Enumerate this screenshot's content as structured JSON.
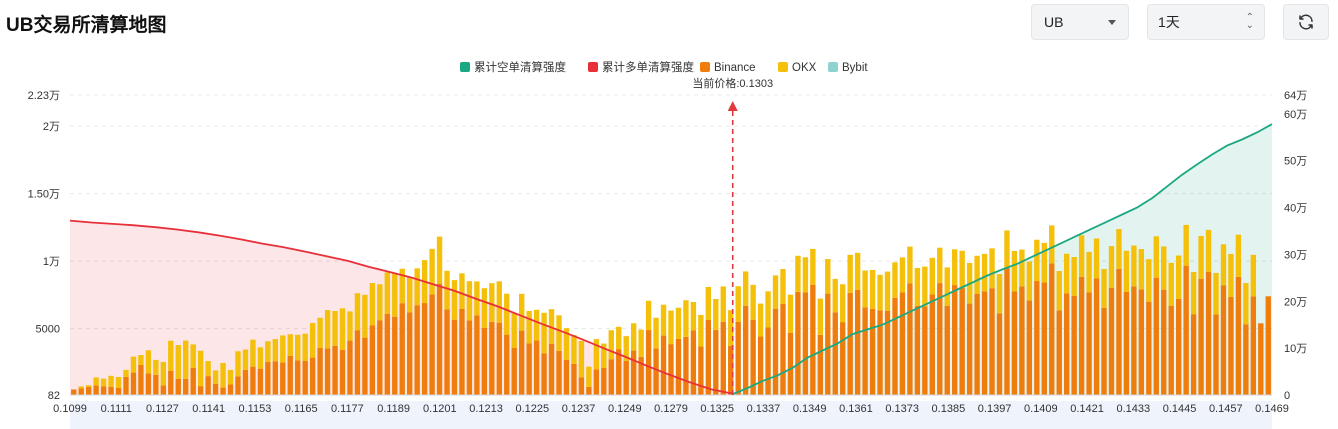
{
  "page": {
    "title": "UB交易所清算地图"
  },
  "controls": {
    "coin": "UB",
    "timeframe": "1天"
  },
  "colors": {
    "short_cum": "#1aa883",
    "long_cum": "#e8303a",
    "binance": "#ef7d0e",
    "okx": "#f4c00a",
    "bybit": "#8fd3d1",
    "current_price": "#e03a3a"
  },
  "chart_data": {
    "type": "bar",
    "title": "",
    "legend": {
      "position": "top-center",
      "items": [
        "累计空单清算强度",
        "累计多单清算强度",
        "Binance",
        "OKX",
        "Bybit"
      ]
    },
    "current_price_label": "当前价格:0.1303",
    "current_price": 0.1303,
    "x_tick_labels": [
      "0.1099",
      "0.1111",
      "0.1127",
      "0.1141",
      "0.1153",
      "0.1165",
      "0.1177",
      "0.1189",
      "0.1201",
      "0.1213",
      "0.1225",
      "0.1237",
      "0.1249",
      "0.1279",
      "0.1325",
      "0.1337",
      "0.1349",
      "0.1361",
      "0.1373",
      "0.1385",
      "0.1397",
      "0.1409",
      "0.1421",
      "0.1433",
      "0.1445",
      "0.1457",
      "0.1469"
    ],
    "y_left": {
      "range": [
        82,
        22300
      ],
      "tick_labels": [
        "82",
        "5000",
        "1万",
        "1.50万",
        "2万",
        "2.23万"
      ],
      "tick_values": [
        82,
        5000,
        10000,
        15000,
        20000,
        22300
      ]
    },
    "y_right": {
      "range": [
        0,
        640000
      ],
      "tick_labels": [
        "0",
        "10万",
        "20万",
        "30万",
        "40万",
        "50万",
        "60万",
        "64万"
      ],
      "tick_values": [
        0,
        100000,
        200000,
        300000,
        400000,
        500000,
        600000,
        640000
      ]
    },
    "bars_note": "stacked per price level: Binance, OKX, Bybit (left axis)",
    "price_levels_range": [
      0.1099,
      0.1469
    ],
    "bars": {
      "binance": [
        410,
        490,
        590,
        700,
        630,
        600,
        520,
        1340,
        1660,
        2220,
        1600,
        1500,
        700,
        1800,
        1200,
        1200,
        2000,
        660,
        1400,
        830,
        550,
        780,
        1380,
        1860,
        2100,
        1950,
        2440,
        2500,
        2400,
        2890,
        2560,
        2520,
        2770,
        3480,
        3440,
        3650,
        3350,
        4030,
        4800,
        4250,
        5170,
        5540,
        6000,
        5800,
        6800,
        6120,
        6650,
        6810,
        7460,
        8250,
        6340,
        5580,
        6370,
        5520,
        5900,
        4970,
        5420,
        5360,
        4470,
        3480,
        4770,
        3820,
        4040,
        3080,
        3780,
        3270,
        2600,
        2300,
        1300,
        600,
        1900,
        2000,
        2650,
        3400,
        2540,
        3290,
        2830,
        4810,
        3460,
        4400,
        3770,
        4150,
        4310,
        4800,
        3590,
        5560,
        4830,
        5420,
        3630,
        5430,
        6610,
        5580,
        4330,
        5000,
        6370,
        6740,
        4610,
        7640,
        7610,
        8170,
        4460,
        7510,
        6130,
        5400,
        7570,
        7780,
        6490,
        6380,
        6280,
        6240,
        7200,
        7600,
        8280,
        6600,
        6570,
        7440,
        8290,
        6600,
        8140,
        7950,
        6770,
        7480,
        7680,
        7910,
        6050,
        9400,
        7670,
        8050,
        7010,
        8440,
        8340,
        9750,
        6270,
        7530,
        7340,
        8740,
        7590,
        8630,
        6460,
        7930,
        9340,
        7630,
        8050,
        7810,
        6910,
        8690,
        7800,
        6610,
        7120,
        9580,
        5990,
        8610,
        9130,
        5960,
        8110,
        7260,
        8750,
        5240,
        7300,
        5310,
        7310
      ],
      "okx": [
        0,
        150,
        130,
        600,
        580,
        820,
        810,
        520,
        1180,
        740,
        1710,
        1100,
        1750,
        2220,
        2500,
        2830,
        1750,
        2620,
        1110,
        990,
        1820,
        1080,
        1860,
        1510,
        2000,
        1580,
        1540,
        1640,
        2010,
        1610,
        1900,
        2020,
        2560,
        2240,
        2850,
        2570,
        3070,
        2160,
        2740,
        3170,
        3120,
        2660,
        3080,
        3200,
        2550,
        2590,
        2730,
        3180,
        3360,
        3480,
        2860,
        2930,
        2640,
        2910,
        2510,
        2940,
        2860,
        3060,
        3030,
        2580,
        2720,
        2410,
        2270,
        3010,
        2580,
        2630,
        2350,
        2140,
        2700,
        1500,
        2240,
        1810,
        2150,
        1650,
        1820,
        2020,
        2010,
        2170,
        2260,
        2290,
        2480,
        2310,
        2710,
        2090,
        2340,
        2440,
        2280,
        2620,
        2650,
        2630,
        2540,
        2580,
        2440,
        2680,
        2490,
        2590,
        2820,
        2670,
        2590,
        2650,
        2680,
        2560,
        2470,
        2800,
        2810,
        2750,
        2730,
        2880,
        2620,
        2900,
        2630,
        2590,
        2710,
        2810,
        2940,
        2720,
        2620,
        2850,
        2650,
        2730,
        3010,
        2830,
        2770,
        2950,
        2910,
        2790,
        3000,
        2720,
        2880,
        3060,
        2930,
        2810,
        2910,
        2930,
        2880,
        3090,
        3010,
        2960,
        2870,
        3100,
        2950,
        3050,
        3020,
        3000,
        3150,
        3060,
        3200,
        3180,
        3210,
        3020,
        3120,
        3170,
        3100,
        3080,
        3050,
        3180,
        3120,
        3050,
        3080
      ],
      "bybit": [
        0,
        0,
        0,
        0,
        0,
        0,
        0,
        0,
        0,
        0,
        0,
        0,
        0,
        0,
        0,
        0,
        0,
        0,
        0,
        0,
        0,
        0,
        0,
        0,
        0,
        0,
        0,
        0,
        0,
        0,
        0,
        0,
        0,
        0,
        0,
        0,
        0,
        0,
        0,
        0,
        0,
        0,
        0,
        0,
        0,
        0,
        0,
        0,
        0,
        0,
        0,
        0,
        0,
        0,
        0,
        0,
        0,
        0,
        0,
        0,
        0,
        0,
        0,
        0,
        0,
        0,
        0,
        0,
        0,
        0,
        0,
        0,
        0,
        0,
        0,
        0,
        0,
        0,
        0,
        0,
        0,
        0,
        0,
        0,
        0,
        0,
        0,
        0,
        0,
        0,
        0,
        0,
        0,
        0,
        0,
        0,
        0,
        0,
        0,
        0,
        0,
        0,
        0,
        0,
        0,
        0,
        0,
        0,
        0,
        0,
        0,
        0,
        0,
        0,
        0,
        0,
        0,
        0,
        0,
        0,
        0,
        0,
        0,
        0,
        0,
        0,
        0,
        0,
        0,
        0,
        0,
        0,
        0,
        0,
        0,
        0,
        0,
        0,
        0,
        0,
        0,
        0,
        0,
        0,
        0,
        0,
        0,
        0,
        0,
        0,
        0,
        0,
        0,
        0,
        0,
        0,
        0,
        0,
        0,
        0,
        0,
        0,
        0,
        0,
        0,
        0
      ]
    },
    "long_cumulative": [
      372000,
      368000,
      365000,
      362000,
      358000,
      353000,
      347000,
      340000,
      332000,
      323000,
      315000,
      306000,
      296000,
      286000,
      273000,
      262000,
      250000,
      236000,
      222000,
      205000,
      189000,
      171000,
      153000,
      136000,
      118000,
      99000,
      81000,
      62000,
      44000,
      27000,
      12000,
      3000
    ],
    "short_cumulative": [
      2000,
      15000,
      30000,
      42000,
      58000,
      80000,
      95000,
      110000,
      130000,
      140000,
      150000,
      165000,
      180000,
      195000,
      210000,
      225000,
      240000,
      255000,
      268000,
      280000,
      295000,
      310000,
      325000,
      340000,
      355000,
      370000,
      385000,
      400000,
      420000,
      445000,
      470000,
      492000,
      513000,
      532000,
      545000,
      560000,
      578000
    ]
  }
}
